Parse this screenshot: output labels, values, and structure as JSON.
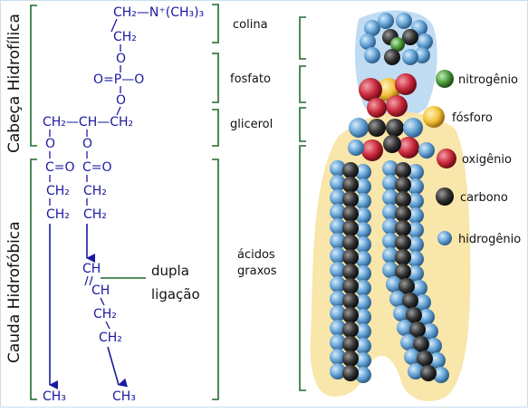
{
  "side_labels": {
    "head": "Cabeça Hidrofílica",
    "tail": "Cauda Hidrofóbica"
  },
  "chemistry": {
    "choline_top": "CH₂—N⁺(CH₃)₃",
    "choline_ch2": "CH₂",
    "o1": "O",
    "phosphate": "O=P—O",
    "o2": "O",
    "glycerol": "CH₂—CH—CH₂",
    "o_left": "O",
    "o_mid": "O",
    "ester_left": "C=O",
    "ester_right": "C=O",
    "left_ch2_1": "CH₂",
    "left_ch2_2": "CH₂",
    "right_ch2_1": "CH₂",
    "right_ch2_2": "CH₂",
    "dbl_ch_1": "CH",
    "dbl_ch_2": "CH",
    "after_ch2_1": "CH₂",
    "after_ch2_2": "CH₂",
    "left_end": "CH₃",
    "right_end": "CH₃"
  },
  "annotations": {
    "choline": "colina",
    "phosphate": "fosfato",
    "glycerol": "glicerol",
    "fatty_acids_1": "ácidos",
    "fatty_acids_2": "graxos",
    "double_bond_1": "dupla",
    "double_bond_2": "ligação"
  },
  "legend": [
    {
      "label": "nitrogênio",
      "color": "#4a9a3a"
    },
    {
      "label": "fósforo",
      "color": "#f3c23a"
    },
    {
      "label": "oxigênio",
      "color": "#c8283a"
    },
    {
      "label": "carbono",
      "color": "#333333"
    },
    {
      "label": "hidrogênio",
      "color": "#5b97cc"
    }
  ],
  "colors": {
    "bond": "#1a1aa0",
    "bracket": "#1f6a2a",
    "head_glow": "#b9d8f2",
    "tail_glow": "#f7e3a1"
  }
}
